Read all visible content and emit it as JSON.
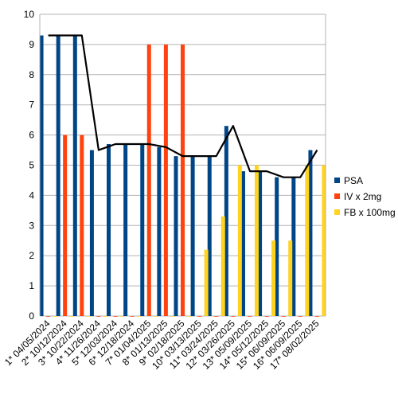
{
  "chart_data": {
    "type": "bar",
    "categories": [
      "1* 04/05/2024",
      "2* 10/12/2024",
      "3* 10/22/2024",
      "4* 11/26/2024",
      "5* 12/03/2024",
      "6* 12/18/2024",
      "7* 01/04/2025",
      "8* 01/13/2025",
      "9* 02/18/2025",
      "10* 03/13/2025",
      "11* 03/24/2025",
      "12* 03/26/2025",
      "13* 05/09/2025",
      "14* 05/12/2025",
      "15* 06/09/2025",
      "16* 06/09/2025",
      "17* 08/02/2025"
    ],
    "series": [
      {
        "name": "PSA",
        "color": "#004586",
        "values": [
          9.3,
          9.3,
          9.3,
          5.5,
          5.7,
          5.7,
          5.7,
          5.6,
          5.3,
          5.3,
          5.3,
          6.3,
          4.8,
          4.8,
          4.6,
          4.6,
          5.5
        ]
      },
      {
        "name": "IV x 2mg",
        "color": "#ff420e",
        "values": [
          0,
          6,
          6,
          0,
          0,
          0,
          9,
          9,
          9,
          0,
          0,
          0,
          0,
          0,
          0,
          0,
          0
        ]
      },
      {
        "name": "FB x 100mg",
        "color": "#ffd320",
        "values": [
          0,
          0,
          0,
          0,
          0,
          0,
          0,
          0,
          0,
          2.2,
          3.3,
          5.0,
          5.0,
          2.5,
          2.5,
          5.0,
          5.0
        ]
      }
    ],
    "trend_line": {
      "color": "#000000",
      "values": [
        9.3,
        9.3,
        9.3,
        5.5,
        5.7,
        5.7,
        5.7,
        5.6,
        5.3,
        5.3,
        5.3,
        6.3,
        4.8,
        4.8,
        4.6,
        4.6,
        5.5
      ]
    },
    "title": "",
    "xlabel": "",
    "ylabel": "",
    "ylim": [
      0,
      10
    ],
    "yticks": [
      "0",
      "1",
      "2",
      "3",
      "4",
      "5",
      "6",
      "7",
      "8",
      "9",
      "10"
    ],
    "grid": true,
    "legend_position": "right"
  }
}
